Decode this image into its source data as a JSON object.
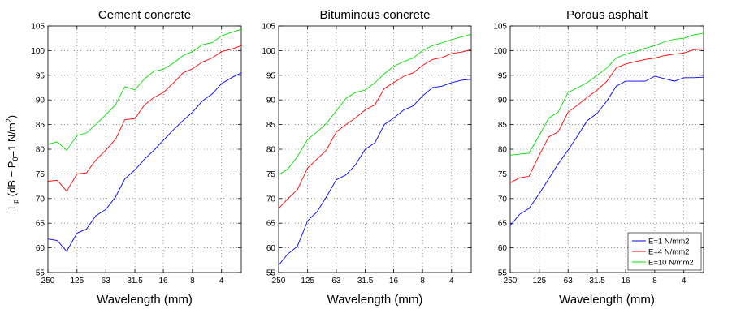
{
  "figure": {
    "ylabel_main": "L",
    "ylabel_sub1": "p",
    "ylabel_mid": " (dB − P",
    "ylabel_sub2": "0",
    "ylabel_mid2": "=1 N/m",
    "ylabel_sup": "2",
    "ylabel_end": ")"
  },
  "chart_data": [
    {
      "type": "line",
      "title": "Cement concrete",
      "xlabel": "Wavelength (mm)",
      "ylabel": "L_p (dB − P_0=1 N/m^2)",
      "x_scale": "log (wavelength decreasing to the right)",
      "xlim": [
        250,
        2.5
      ],
      "ylim": [
        55,
        105
      ],
      "x_ticks": [
        "250",
        "125",
        "63",
        "31.5",
        "16",
        "8",
        "4"
      ],
      "x_tick_values": [
        250,
        125,
        63,
        31.5,
        16,
        8,
        4
      ],
      "y_ticks": [
        55,
        60,
        65,
        70,
        75,
        80,
        85,
        90,
        95,
        100,
        105
      ],
      "grid": true,
      "x": [
        250,
        200,
        160,
        125,
        100,
        80,
        63,
        50,
        40,
        31.5,
        25,
        20,
        16,
        12.5,
        10,
        8,
        6.3,
        5,
        4,
        3.15,
        2.5
      ],
      "series": [
        {
          "name": "E=1 N/mm2",
          "color": "#0000ff",
          "values": [
            61.8,
            61.5,
            59.3,
            63.0,
            63.8,
            66.5,
            67.8,
            70.3,
            74.0,
            75.8,
            78.0,
            79.8,
            81.8,
            84.0,
            85.8,
            87.5,
            89.8,
            91.2,
            93.3,
            94.5,
            95.5
          ]
        },
        {
          "name": "E=4 N/mm2",
          "color": "#ff0000",
          "values": [
            73.5,
            73.7,
            71.5,
            75.0,
            75.2,
            77.8,
            79.8,
            82.0,
            86.0,
            86.2,
            89.0,
            90.5,
            91.5,
            93.5,
            95.5,
            96.3,
            97.7,
            98.5,
            99.8,
            100.3,
            101.0
          ]
        },
        {
          "name": "E=10 N/mm2",
          "color": "#00dd00",
          "values": [
            81.0,
            81.5,
            79.8,
            82.8,
            83.3,
            85.0,
            87.0,
            89.0,
            92.7,
            92.0,
            94.3,
            95.8,
            96.2,
            97.5,
            99.0,
            99.8,
            101.2,
            101.6,
            103.0,
            103.7,
            104.3
          ]
        }
      ]
    },
    {
      "type": "line",
      "title": "Bituminous concrete",
      "xlabel": "Wavelength (mm)",
      "x_scale": "log (wavelength decreasing to the right)",
      "xlim": [
        250,
        2.5
      ],
      "ylim": [
        55,
        105
      ],
      "x_ticks": [
        "250",
        "125",
        "63",
        "31.5",
        "16",
        "8",
        "4"
      ],
      "x_tick_values": [
        250,
        125,
        63,
        31.5,
        16,
        8,
        4
      ],
      "y_ticks": [
        55,
        60,
        65,
        70,
        75,
        80,
        85,
        90,
        95,
        100,
        105
      ],
      "grid": true,
      "x": [
        250,
        200,
        160,
        125,
        100,
        80,
        63,
        50,
        40,
        31.5,
        25,
        20,
        16,
        12.5,
        10,
        8,
        6.3,
        5,
        4,
        3.15,
        2.5
      ],
      "series": [
        {
          "name": "E=1 N/mm2",
          "color": "#0000ff",
          "values": [
            56.5,
            58.8,
            60.3,
            65.5,
            67.3,
            70.3,
            73.8,
            74.8,
            76.8,
            80.0,
            81.3,
            85.0,
            86.3,
            88.0,
            88.8,
            90.8,
            92.5,
            92.8,
            93.5,
            94.0,
            94.2
          ]
        },
        {
          "name": "E=4 N/mm2",
          "color": "#ff0000",
          "values": [
            68.0,
            70.0,
            71.8,
            76.2,
            78.0,
            79.8,
            83.5,
            85.0,
            86.3,
            88.0,
            89.0,
            92.3,
            93.5,
            94.8,
            95.5,
            97.0,
            98.2,
            98.6,
            99.4,
            99.7,
            100.2
          ]
        },
        {
          "name": "E=10 N/mm2",
          "color": "#00dd00",
          "values": [
            74.8,
            76.0,
            78.5,
            82.0,
            83.5,
            85.2,
            87.8,
            90.3,
            91.5,
            92.0,
            93.5,
            95.3,
            96.8,
            97.8,
            98.5,
            100.0,
            101.0,
            101.6,
            102.2,
            102.8,
            103.3
          ]
        }
      ]
    },
    {
      "type": "line",
      "title": "Porous asphalt",
      "xlabel": "Wavelength (mm)",
      "x_scale": "log (wavelength decreasing to the right)",
      "xlim": [
        250,
        2.5
      ],
      "ylim": [
        55,
        105
      ],
      "x_ticks": [
        "250",
        "125",
        "63",
        "31.5",
        "16",
        "8",
        "4"
      ],
      "x_tick_values": [
        250,
        125,
        63,
        31.5,
        16,
        8,
        4
      ],
      "y_ticks": [
        55,
        60,
        65,
        70,
        75,
        80,
        85,
        90,
        95,
        100,
        105
      ],
      "grid": true,
      "legend": {
        "placement": "bottom-right",
        "entries": [
          "E=1 N/mm2",
          "E=4 N/mm2",
          "E=10 N/mm2"
        ]
      },
      "x": [
        250,
        200,
        160,
        125,
        100,
        80,
        63,
        50,
        40,
        31.5,
        25,
        20,
        16,
        12.5,
        10,
        8,
        6.3,
        5,
        4,
        3.15,
        2.5
      ],
      "series": [
        {
          "name": "E=1 N/mm2",
          "color": "#0000ff",
          "values": [
            64.5,
            66.8,
            68.0,
            71.0,
            74.0,
            77.0,
            79.8,
            82.8,
            85.8,
            87.3,
            89.8,
            92.8,
            93.8,
            93.8,
            93.8,
            94.8,
            94.3,
            93.8,
            94.5,
            94.5,
            94.6
          ]
        },
        {
          "name": "E=4 N/mm2",
          "color": "#ff0000",
          "values": [
            73.2,
            74.2,
            74.5,
            78.8,
            82.5,
            83.5,
            87.5,
            89.0,
            90.5,
            92.0,
            93.8,
            96.5,
            97.3,
            97.8,
            98.2,
            98.5,
            99.0,
            99.3,
            99.5,
            100.2,
            100.3
          ]
        },
        {
          "name": "E=10 N/mm2",
          "color": "#00dd00",
          "values": [
            78.8,
            79.0,
            79.2,
            82.8,
            86.3,
            87.5,
            91.5,
            92.5,
            93.5,
            95.0,
            96.5,
            98.5,
            99.3,
            99.8,
            100.5,
            101.0,
            101.8,
            102.3,
            102.5,
            103.2,
            103.5
          ]
        }
      ]
    }
  ]
}
